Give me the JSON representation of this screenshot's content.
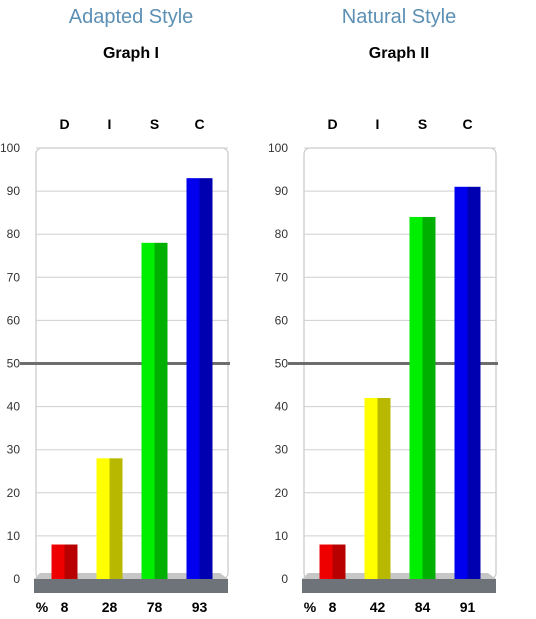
{
  "chart_data": [
    {
      "type": "bar",
      "heading": "Adapted Style",
      "title": "Graph I",
      "categories": [
        "D",
        "I",
        "S",
        "C"
      ],
      "values": [
        8,
        28,
        78,
        93
      ],
      "value_labels": [
        "8",
        "28",
        "78",
        "93"
      ],
      "percent_label": "%",
      "ylim": [
        0,
        100
      ],
      "yticks": [
        0,
        10,
        20,
        30,
        40,
        50,
        60,
        70,
        80,
        90,
        100
      ],
      "midline": 50,
      "grid": true,
      "colors": [
        "#ee0000",
        "#ffff00",
        "#00ee00",
        "#0000ee"
      ],
      "dark_colors": [
        "#b80000",
        "#b8b800",
        "#00b000",
        "#0000b0"
      ]
    },
    {
      "type": "bar",
      "heading": "Natural Style",
      "title": "Graph II",
      "categories": [
        "D",
        "I",
        "S",
        "C"
      ],
      "values": [
        8,
        42,
        84,
        91
      ],
      "value_labels": [
        "8",
        "42",
        "84",
        "91"
      ],
      "percent_label": "%",
      "ylim": [
        0,
        100
      ],
      "yticks": [
        0,
        10,
        20,
        30,
        40,
        50,
        60,
        70,
        80,
        90,
        100
      ],
      "midline": 50,
      "grid": true,
      "colors": [
        "#ee0000",
        "#ffff00",
        "#00ee00",
        "#0000ee"
      ],
      "dark_colors": [
        "#b80000",
        "#b8b800",
        "#00b000",
        "#0000b0"
      ]
    }
  ]
}
